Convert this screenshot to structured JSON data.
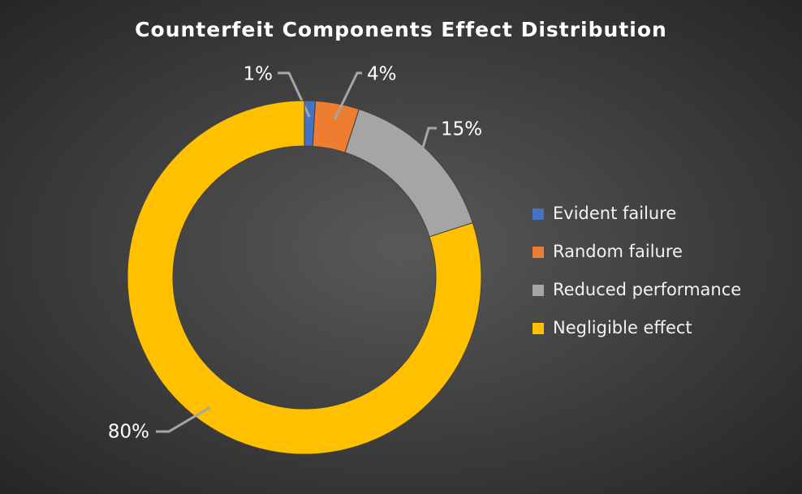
{
  "chart_data": {
    "type": "doughnut",
    "title": "Counterfeit Components Effect Distribution",
    "categories": [
      "Evident failure",
      "Random failure",
      "Reduced performance",
      "Negligible effect"
    ],
    "values": [
      1,
      4,
      15,
      80
    ],
    "value_labels": [
      "1%",
      "4%",
      "15%",
      "80%"
    ],
    "colors": [
      "#4472c4",
      "#ed7d31",
      "#a5a5a5",
      "#ffc000"
    ],
    "legend": "right"
  }
}
